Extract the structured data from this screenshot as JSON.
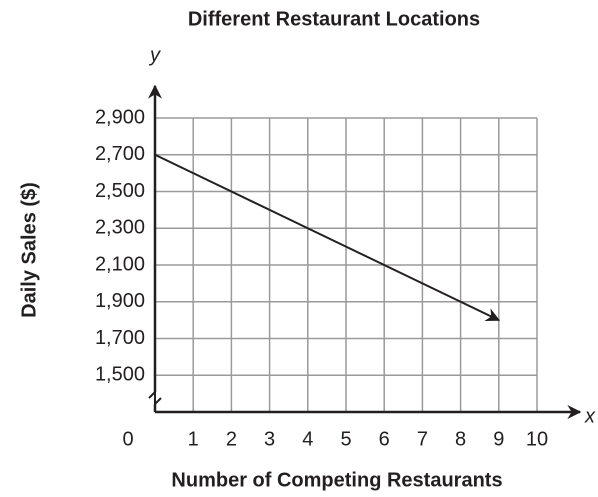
{
  "chart_data": {
    "type": "line",
    "title": "Different Restaurant Locations",
    "x_label": "Number of Competing Restaurants",
    "y_label": "Daily Sales ($)",
    "x_axis_name": "x",
    "y_axis_name": "y",
    "x": [
      0,
      1,
      2,
      3,
      4,
      5,
      6,
      7,
      8,
      9
    ],
    "series": [
      {
        "color": "#231f20",
        "values": [
          2700,
          2600,
          2500,
          2400,
          2300,
          2200,
          2100,
          2000,
          1900,
          1800
        ]
      }
    ],
    "xlim": [
      0,
      10
    ],
    "xticks": [
      0,
      1,
      2,
      3,
      4,
      5,
      6,
      7,
      8,
      9,
      10
    ],
    "ylim": [
      1300,
      2900
    ],
    "yticks": [
      {
        "value": 1500,
        "label": "1,500"
      },
      {
        "value": 1700,
        "label": "1,700"
      },
      {
        "value": 1900,
        "label": "1,900"
      },
      {
        "value": 2100,
        "label": "2,100"
      },
      {
        "value": 2300,
        "label": "2,300"
      },
      {
        "value": 2500,
        "label": "2,500"
      },
      {
        "value": 2700,
        "label": "2,700"
      },
      {
        "value": 2900,
        "label": "2,900"
      }
    ],
    "grid": true
  }
}
